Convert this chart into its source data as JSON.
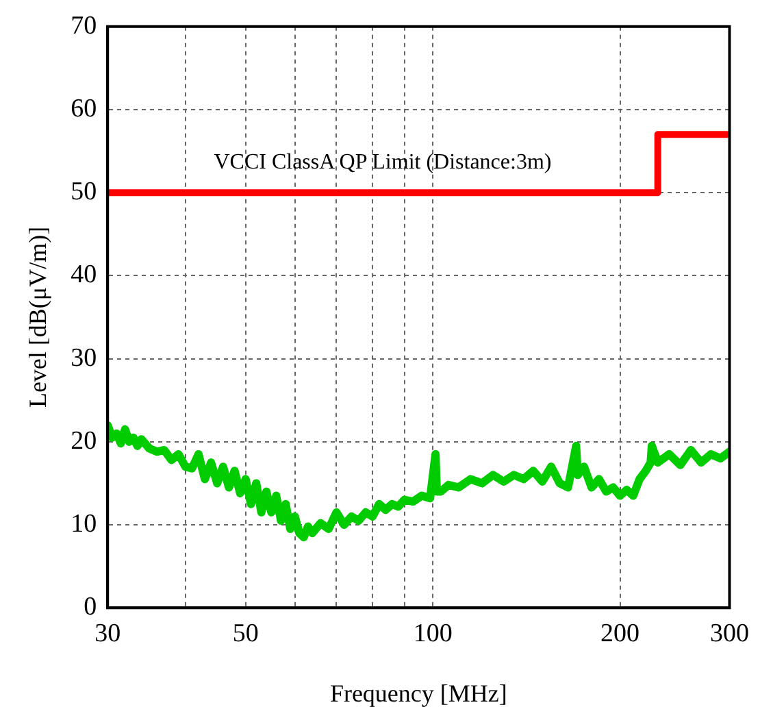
{
  "chart_data": {
    "type": "line",
    "xlabel": "Frequency [MHz]",
    "ylabel": "Level [dB(μV/m)]",
    "log": "x",
    "xlim": [
      30,
      300
    ],
    "ylim": [
      0,
      70
    ],
    "xticks": [
      30,
      {
        "value": 40,
        "label": null
      },
      50,
      {
        "value": 60,
        "label": null
      },
      {
        "value": 70,
        "label": null
      },
      {
        "value": 80,
        "label": null
      },
      {
        "value": 90,
        "label": null
      },
      100,
      200,
      300
    ],
    "yticks": [
      0,
      10,
      20,
      30,
      40,
      50,
      60,
      70
    ],
    "grid": true,
    "legend": false,
    "marker": "none",
    "series": [
      {
        "color": "#00cc00",
        "x": [
          30,
          30.5,
          31,
          31.5,
          32,
          32.5,
          33,
          33.5,
          34,
          35,
          36,
          37,
          38,
          39,
          40,
          41,
          42,
          43,
          44,
          45,
          46,
          47,
          48,
          49,
          50,
          51,
          52,
          53,
          54,
          55,
          56,
          57,
          58,
          59,
          60,
          61,
          62,
          63,
          64,
          66,
          68,
          70,
          72,
          74,
          76,
          78,
          80,
          82,
          84,
          86,
          88,
          90,
          93,
          96,
          99,
          101,
          101.5,
          103,
          106,
          110,
          115,
          120,
          125,
          130,
          135,
          140,
          145,
          150,
          155,
          160,
          165,
          170,
          171,
          175,
          180,
          185,
          190,
          195,
          200,
          205,
          210,
          215,
          220,
          224,
          225,
          230,
          240,
          250,
          260,
          270,
          280,
          290,
          300
        ],
        "values": [
          22,
          20.5,
          21,
          19.8,
          21.5,
          20,
          20.5,
          19.5,
          20.3,
          19.2,
          18.8,
          19,
          17.8,
          18.5,
          17,
          16.8,
          18.5,
          15.5,
          17.5,
          15,
          17,
          14.5,
          16.5,
          13.8,
          15.5,
          12.5,
          15,
          11.5,
          14,
          11.5,
          13.5,
          10.5,
          12.5,
          9.5,
          11,
          9,
          8.5,
          9.8,
          9,
          10.2,
          9.5,
          11.5,
          10,
          11,
          10.5,
          11.5,
          11,
          12.5,
          11.8,
          12.5,
          12.2,
          13,
          12.8,
          13.5,
          13.2,
          18.5,
          14,
          14,
          14.8,
          14.5,
          15.5,
          15,
          16,
          15.2,
          16,
          15.5,
          16.5,
          15.2,
          17,
          15,
          14.5,
          19.5,
          16,
          17,
          14.5,
          15.5,
          14,
          14.5,
          13.5,
          14.2,
          13.5,
          15.5,
          16.5,
          17.5,
          19.5,
          17.5,
          18.5,
          17.2,
          19,
          17.5,
          18.5,
          18,
          18.8
        ]
      },
      {
        "name": "VCCI ClassA QP Limit (Distance:3m)",
        "color": "#ff0000",
        "type": "step",
        "x": [
          30,
          230,
          300
        ],
        "values": [
          50,
          57,
          57
        ]
      }
    ]
  }
}
